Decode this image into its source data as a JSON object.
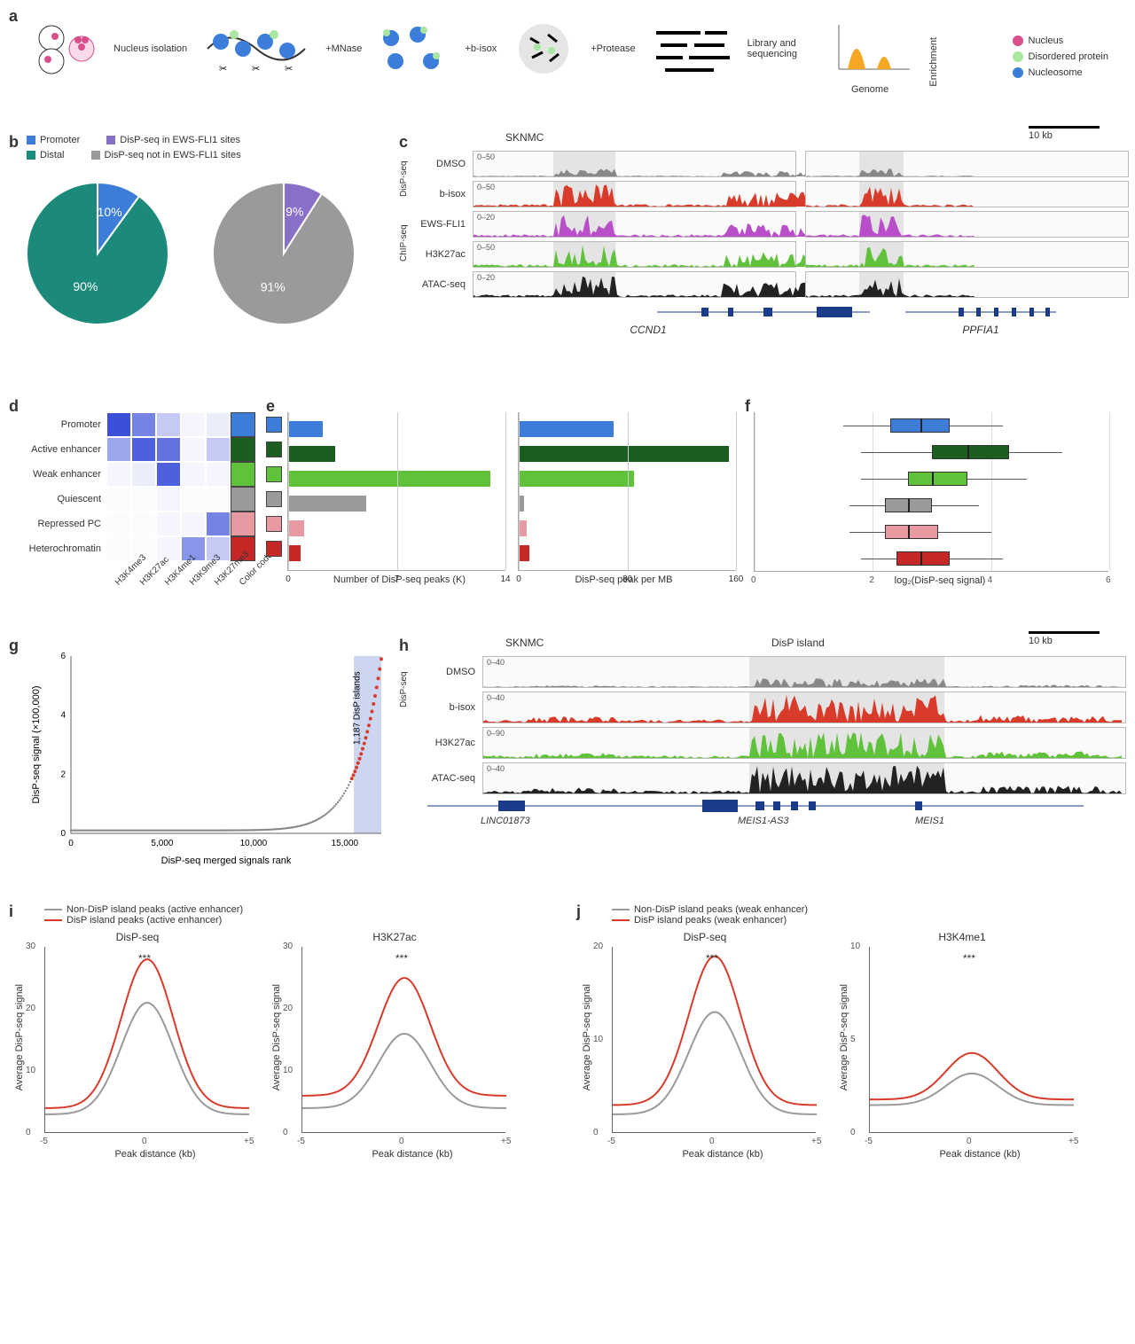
{
  "panelA": {
    "label": "a",
    "steps": [
      "Nucleus isolation",
      "+MNase",
      "+b-isox",
      "+Protease",
      "Library and sequencing"
    ],
    "enrichment_chart": {
      "xlabel": "Genome",
      "ylabel": "Enrichment",
      "fill": "#f5a623"
    },
    "legend": [
      {
        "label": "Nucleus",
        "color": "#d94f8c",
        "shape": "circle"
      },
      {
        "label": "Disordered protein",
        "color": "#a8e6a1",
        "shape": "circle"
      },
      {
        "label": "Nucleosome",
        "color": "#3b7dd8",
        "shape": "circle"
      }
    ]
  },
  "panelB": {
    "label": "b",
    "pies": [
      {
        "slices": [
          {
            "label": "Promoter",
            "value": 10,
            "color": "#3b7dd8",
            "text": "10%"
          },
          {
            "label": "Distal",
            "value": 90,
            "color": "#1b8a7a",
            "text": "90%"
          }
        ]
      },
      {
        "slices": [
          {
            "label": "DisP-seq in EWS-FLI1 sites",
            "value": 9,
            "color": "#8a6fc9",
            "text": "9%"
          },
          {
            "label": "DisP-seq not in EWS-FLI1 sites",
            "value": 91,
            "color": "#9a9a9a",
            "text": "91%"
          }
        ]
      }
    ],
    "legend_row1": [
      {
        "label": "Promoter",
        "color": "#3b7dd8"
      },
      {
        "label": "DisP-seq in EWS-FLI1 sites",
        "color": "#8a6fc9"
      }
    ],
    "legend_row2": [
      {
        "label": "Distal",
        "color": "#1b8a7a"
      },
      {
        "label": "DisP-seq not in EWS-FLI1 sites",
        "color": "#9a9a9a"
      }
    ]
  },
  "panelC": {
    "label": "c",
    "title": "SKNMC",
    "scale_bar": "10 kb",
    "group_labels": [
      "DisP-seq",
      "ChIP-seq"
    ],
    "tracks": [
      {
        "name": "DMSO",
        "range": "0–50",
        "color": "#888888"
      },
      {
        "name": "b-isox",
        "range": "0–50",
        "color": "#d93b2b"
      },
      {
        "name": "EWS-FLI1",
        "range": "0–20",
        "color": "#b84fc9"
      },
      {
        "name": "H3K27ac",
        "range": "0–50",
        "color": "#5fc23a"
      },
      {
        "name": "ATAC-seq",
        "range": "0–20",
        "color": "#222222"
      }
    ],
    "gene_left": "CCND1",
    "gene_right": "PPFIA1",
    "highlight_color": "#d6d6d6"
  },
  "panelD": {
    "label": "d",
    "rows": [
      "Promoter",
      "Active enhancer",
      "Weak enhancer",
      "Quiescent",
      "Repressed PC",
      "Heterochromatin"
    ],
    "cols": [
      "H3K4me3",
      "H3K27ac",
      "H3K4me1",
      "H3K9me3",
      "H3K27me3",
      "Color code"
    ],
    "matrix": [
      [
        1.0,
        0.7,
        0.3,
        0.05,
        0.1,
        null
      ],
      [
        0.5,
        0.9,
        0.8,
        0.05,
        0.3,
        null
      ],
      [
        0.05,
        0.1,
        0.9,
        0.05,
        0.05,
        null
      ],
      [
        0.02,
        0.02,
        0.05,
        0.02,
        0.02,
        null
      ],
      [
        0.02,
        0.02,
        0.05,
        0.05,
        0.7,
        null
      ],
      [
        0.02,
        0.02,
        0.05,
        0.6,
        0.3,
        null
      ]
    ],
    "heat_color": "#3b4fd8",
    "colorcode": [
      "#3b7dd8",
      "#1b5e20",
      "#5fc23a",
      "#9a9a9a",
      "#e89aa3",
      "#c62828"
    ]
  },
  "panelE": {
    "label": "e",
    "left": {
      "xlabel": "Number of DisP-seq peaks (K)",
      "xmax": 14,
      "ticks": [
        0,
        7,
        14
      ],
      "values": [
        2.2,
        3.0,
        13.0,
        5.0,
        1.0,
        0.8
      ]
    },
    "right": {
      "xlabel": "DisP-seq peak per MB",
      "xmax": 160,
      "ticks": [
        0,
        80,
        160
      ],
      "values": [
        70,
        155,
        85,
        4,
        6,
        8
      ]
    },
    "colors": [
      "#3b7dd8",
      "#1b5e20",
      "#5fc23a",
      "#9a9a9a",
      "#e89aa3",
      "#c62828"
    ]
  },
  "panelF": {
    "label": "f",
    "xlabel": "log₂(DisP-seq signal)",
    "xlim": [
      0,
      6
    ],
    "ticks": [
      0,
      2,
      4,
      6
    ],
    "boxes": [
      {
        "q1": 2.3,
        "med": 2.8,
        "q3": 3.3,
        "w1": 1.5,
        "w2": 4.2,
        "color": "#3b7dd8"
      },
      {
        "q1": 3.0,
        "med": 3.6,
        "q3": 4.3,
        "w1": 1.8,
        "w2": 5.2,
        "color": "#1b5e20"
      },
      {
        "q1": 2.6,
        "med": 3.0,
        "q3": 3.6,
        "w1": 1.8,
        "w2": 4.6,
        "color": "#5fc23a"
      },
      {
        "q1": 2.2,
        "med": 2.6,
        "q3": 3.0,
        "w1": 1.6,
        "w2": 3.8,
        "color": "#9a9a9a"
      },
      {
        "q1": 2.2,
        "med": 2.6,
        "q3": 3.1,
        "w1": 1.6,
        "w2": 4.0,
        "color": "#e89aa3"
      },
      {
        "q1": 2.4,
        "med": 2.8,
        "q3": 3.3,
        "w1": 1.8,
        "w2": 4.2,
        "color": "#c62828"
      }
    ]
  },
  "panelG": {
    "label": "g",
    "xlabel": "DisP-seq merged signals rank",
    "ylabel": "DisP-seq signal (×100,000)",
    "xlim": [
      0,
      17000
    ],
    "xticks": [
      0,
      5000,
      10000,
      15000
    ],
    "ylim": [
      0,
      6
    ],
    "yticks": [
      0,
      2,
      4,
      6
    ],
    "annotation": "1,187 DisP islands",
    "highlight_color": "#cdd6f0",
    "curve_color_low": "#888888",
    "curve_color_high": "#d93b2b"
  },
  "panelH": {
    "label": "h",
    "title": "SKNMC",
    "island_label": "DisP island",
    "scale_bar": "10 kb",
    "group_label": "DisP-seq",
    "tracks": [
      {
        "name": "DMSO",
        "range": "0–40",
        "color": "#888888"
      },
      {
        "name": "b-isox",
        "range": "0–40",
        "color": "#d93b2b"
      },
      {
        "name": "H3K27ac",
        "range": "0–90",
        "color": "#5fc23a"
      },
      {
        "name": "ATAC-seq",
        "range": "0–40",
        "color": "#222222"
      }
    ],
    "genes": [
      "LINC01873",
      "MEIS1-AS3",
      "MEIS1"
    ],
    "highlight_color": "#d6d6d6"
  },
  "panelI": {
    "label": "i",
    "legend": [
      {
        "label": "Non-DisP island peaks (active enhancer)",
        "color": "#9a9a9a"
      },
      {
        "label": "DisP island peaks (active enhancer)",
        "color": "#d93b2b"
      }
    ],
    "plots": [
      {
        "title": "DisP-seq",
        "ylabel": "Average DisP-seq signal",
        "xlabel": "Peak distance (kb)",
        "xlim": [
          -5,
          5
        ],
        "xticks": [
          -5,
          0,
          5
        ],
        "ylim": [
          0,
          30
        ],
        "yticks": [
          0,
          10,
          20,
          30
        ],
        "sig": "***",
        "series": [
          {
            "color": "#9a9a9a",
            "peak": 21,
            "base": 3
          },
          {
            "color": "#d93b2b",
            "peak": 28,
            "base": 4
          }
        ]
      },
      {
        "title": "H3K27ac",
        "ylabel": "Average DisP-seq signal",
        "xlabel": "Peak distance (kb)",
        "xlim": [
          -5,
          5
        ],
        "xticks": [
          -5,
          0,
          5
        ],
        "ylim": [
          0,
          30
        ],
        "yticks": [
          0,
          10,
          20,
          30
        ],
        "sig": "***",
        "series": [
          {
            "color": "#9a9a9a",
            "peak": 16,
            "base": 4
          },
          {
            "color": "#d93b2b",
            "peak": 25,
            "base": 6
          }
        ]
      }
    ]
  },
  "panelJ": {
    "label": "j",
    "legend": [
      {
        "label": "Non-DisP island peaks (weak enhancer)",
        "color": "#9a9a9a"
      },
      {
        "label": "DisP island peaks (weak enhancer)",
        "color": "#d93b2b"
      }
    ],
    "plots": [
      {
        "title": "DisP-seq",
        "ylabel": "Average DisP-seq signal",
        "xlabel": "Peak distance (kb)",
        "xlim": [
          -5,
          5
        ],
        "xticks": [
          -5,
          0,
          5
        ],
        "ylim": [
          0,
          20
        ],
        "yticks": [
          0,
          10,
          20
        ],
        "sig": "***",
        "series": [
          {
            "color": "#9a9a9a",
            "peak": 13,
            "base": 2
          },
          {
            "color": "#d93b2b",
            "peak": 19,
            "base": 3
          }
        ]
      },
      {
        "title": "H3K4me1",
        "ylabel": "Average DisP-seq signal",
        "xlabel": "Peak distance (kb)",
        "xlim": [
          -5,
          5
        ],
        "xticks": [
          -5,
          0,
          5
        ],
        "ylim": [
          0,
          10
        ],
        "yticks": [
          0,
          5,
          10
        ],
        "sig": "***",
        "series": [
          {
            "color": "#9a9a9a",
            "peak": 3.2,
            "base": 1.5
          },
          {
            "color": "#d93b2b",
            "peak": 4.3,
            "base": 1.8
          }
        ]
      }
    ]
  }
}
